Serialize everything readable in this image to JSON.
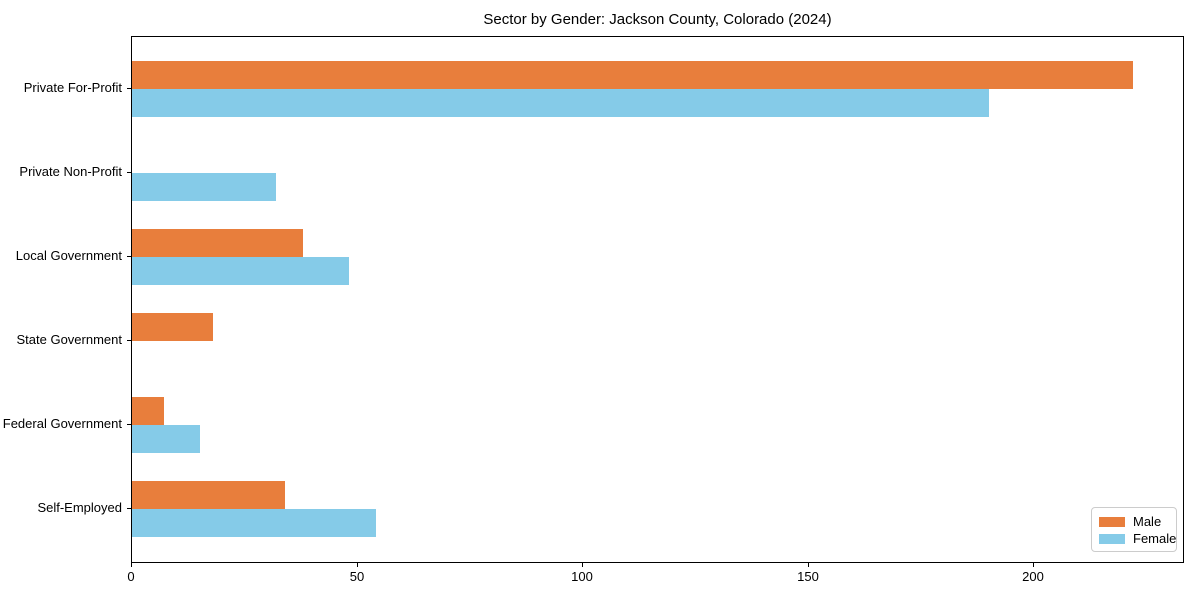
{
  "title": "Sector by Gender: Jackson County, Colorado (2024)",
  "colors": {
    "male": "#e87e3c",
    "female": "#85cbe8",
    "axis_frame": "#000000",
    "legend_border": "#cccccc",
    "background": "#ffffff",
    "text": "#000000"
  },
  "chart_data": {
    "type": "bar",
    "orientation": "horizontal",
    "title": "Sector by Gender: Jackson County, Colorado (2024)",
    "categories": [
      "Private For-Profit",
      "Private Non-Profit",
      "Local Government",
      "State Government",
      "Federal Government",
      "Self-Employed"
    ],
    "series": [
      {
        "name": "Male",
        "color": "#e87e3c",
        "values": [
          222,
          0,
          38,
          18,
          7,
          34
        ]
      },
      {
        "name": "Female",
        "color": "#85cbe8",
        "values": [
          190,
          32,
          48,
          0,
          15,
          54
        ]
      }
    ],
    "xlabel": "",
    "ylabel": "",
    "x_ticks": [
      0,
      50,
      100,
      150,
      200
    ],
    "xlim": [
      0,
      233
    ],
    "grid": false,
    "legend_position": "lower right"
  },
  "legend": {
    "items": [
      {
        "label": "Male"
      },
      {
        "label": "Female"
      }
    ]
  }
}
